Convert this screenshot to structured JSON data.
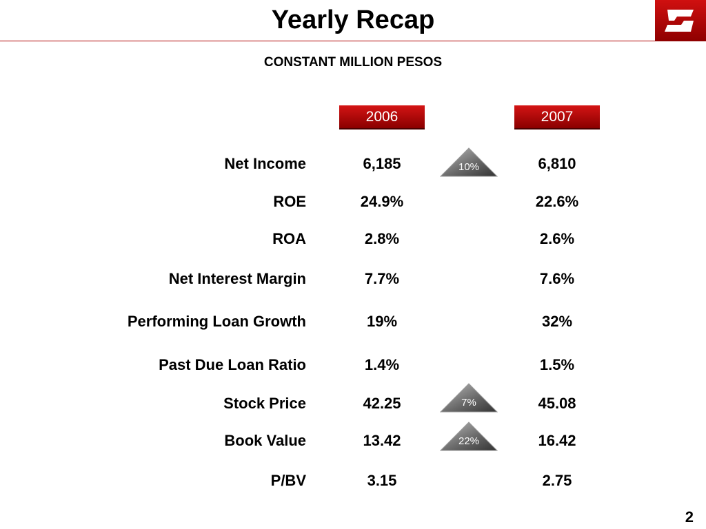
{
  "header": {
    "title": "Yearly Recap",
    "subtitle": "CONSTANT MILLION PESOS"
  },
  "columns": [
    "2006",
    "2007"
  ],
  "rows": [
    {
      "label": "Net Income",
      "v2006": "6,185",
      "v2007": "6,810",
      "change": "10%"
    },
    {
      "label": "ROE",
      "v2006": "24.9%",
      "v2007": "22.6%"
    },
    {
      "label": "ROA",
      "v2006": "2.8%",
      "v2007": "2.6%"
    },
    {
      "label": "Net Interest Margin",
      "v2006": "7.7%",
      "v2007": "7.6%"
    },
    {
      "label": "Performing Loan Growth",
      "v2006": "19%",
      "v2007": "32%"
    },
    {
      "label": "Past Due Loan Ratio",
      "v2006": "1.4%",
      "v2007": "1.5%"
    },
    {
      "label": "Stock Price",
      "v2006": "42.25",
      "v2007": "45.08",
      "change": "7%"
    },
    {
      "label": "Book Value",
      "v2006": "13.42",
      "v2007": "16.42",
      "change": "22%"
    },
    {
      "label": "P/BV",
      "v2006": "3.15",
      "v2007": "2.75"
    }
  ],
  "colors": {
    "accent_red": "#c00000",
    "badge_gray": "#6e6e6e"
  },
  "icons": {
    "logo": "banorte-logo-icon",
    "increase": "up-arrow-triangle-icon"
  },
  "page_number": "2"
}
